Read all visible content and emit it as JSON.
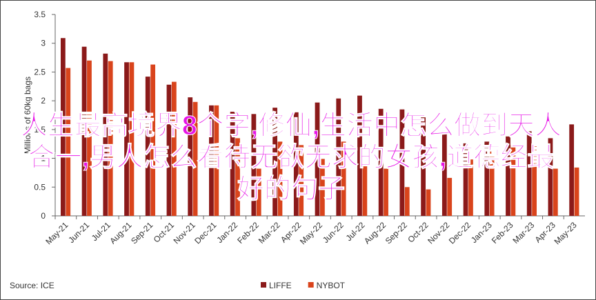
{
  "chart_data": {
    "type": "bar",
    "ylabel": "Millions of 60kg bags",
    "source": "Source: ICE",
    "overlay": "人生最高境界8个字,修仙,生活中怎么做到天人合一,男人怎么看待无欲无求的女孩,道德经最好的句子",
    "categories": [
      "May-21",
      "Jun-21",
      "Jul-21",
      "Aug-21",
      "Sep-21",
      "Oct-21",
      "Nov-21",
      "Dec-21",
      "Jan-22",
      "Feb-22",
      "Mar-22",
      "Apr-22",
      "May-22",
      "Jun-22",
      "Jul-22",
      "Aug-22",
      "Sep-22",
      "Oct-22",
      "Nov-22",
      "Dec-22",
      "Jan-23",
      "Feb-23",
      "Mar-23",
      "Apr-23",
      "May-23"
    ],
    "series": [
      {
        "name": "LIFFE",
        "color": "#8b1a1a",
        "values": [
          3.09,
          2.94,
          2.82,
          2.67,
          2.42,
          2.28,
          2.06,
          1.92,
          1.81,
          1.77,
          1.88,
          1.8,
          1.97,
          2.04,
          2.09,
          1.86,
          1.85,
          1.75,
          1.47,
          1.26,
          1.29,
          1.38,
          1.47,
          1.35,
          1.59
        ]
      },
      {
        "name": "NYBOT",
        "color": "#d9441c",
        "values": [
          2.57,
          2.7,
          2.69,
          2.67,
          2.63,
          2.33,
          1.98,
          1.92,
          1.35,
          0.82,
          1.29,
          1.23,
          0.99,
          1.29,
          0.88,
          0.82,
          0.5,
          0.46,
          0.66,
          0.98,
          1.12,
          1.23,
          1.23,
          0.82,
          0.84
        ]
      }
    ],
    "ylim": [
      0,
      3.5
    ],
    "yticks": [
      0,
      0.5,
      1,
      1.5,
      2,
      2.5,
      3,
      3.5
    ]
  }
}
